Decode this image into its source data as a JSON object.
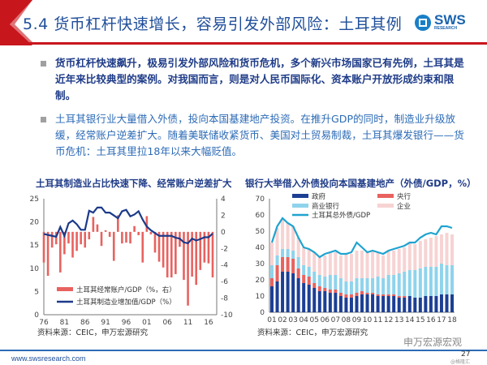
{
  "header": {
    "title": "5.4 货币杠杆快速增长，容易引发外部风险：土耳其例",
    "logo": "SWS",
    "logo_sub": "RESEARCH"
  },
  "bullets": [
    "货币杠杆快速飙升，极易引发外部风险和货币危机，多个新兴市场国家已有先例，土耳其是近年来比较典型的案例。对我国而言，则是对人民币国际化、资本账户开放形成约束和限制。",
    "土耳其银行业大量借入外债，投向本国基建地产投资。在推升GDP的同时，制造业升级放缓，经常账户逆差扩大。随着美联储收紧货币、美国对土贸易制裁，土耳其爆发银行——货币危机：土耳其里拉18年以来大幅贬值。"
  ],
  "footer": {
    "url": "www.swsresearch.com",
    "page": "27",
    "watermark": "申万宏源宏观",
    "watermark2": "@格隆汇"
  },
  "colors": {
    "title": "#1f4e9a",
    "accent_red": "#c8161d",
    "footer_line": "#2d6bb6"
  },
  "chart_data": [
    {
      "type": "bar+line",
      "title": "土耳其制造业占比快速下降、经常账户逆差扩大",
      "source": "资料来源：CEIC，申万宏源研究",
      "x": [
        1976,
        1977,
        1978,
        1979,
        1980,
        1981,
        1982,
        1983,
        1984,
        1985,
        1986,
        1987,
        1988,
        1989,
        1990,
        1991,
        1992,
        1993,
        1994,
        1995,
        1996,
        1997,
        1998,
        1999,
        2000,
        2001,
        2002,
        2003,
        2004,
        2005,
        2006,
        2007,
        2008,
        2009,
        2010,
        2011,
        2012,
        2013,
        2014,
        2015,
        2016,
        2017
      ],
      "xticks": [
        "76",
        "81",
        "86",
        "91",
        "96",
        "01",
        "06",
        "11",
        "16"
      ],
      "ylim_left": [
        0,
        25
      ],
      "yticks_left": [
        "0",
        "5",
        "10",
        "15",
        "20",
        "25"
      ],
      "ylim_right": [
        -10,
        4
      ],
      "yticks_right": [
        "-10",
        "-8",
        "-6",
        "-4",
        "-2",
        "0",
        "2",
        "4"
      ],
      "series": [
        {
          "name": "土耳其经常账户/GDP（%，右）",
          "type": "bar",
          "axis": "right",
          "color": "#e8625f",
          "values": [
            -3.7,
            -5.3,
            -1.9,
            -1.5,
            -4.9,
            -2.7,
            -1.4,
            -3.1,
            -2.3,
            -1.5,
            -1.9,
            -0.9,
            1.8,
            0.9,
            -1.7,
            0.2,
            -0.6,
            -3.5,
            2.0,
            -1.4,
            -1.3,
            -1.4,
            0.7,
            -0.4,
            -3.7,
            1.9,
            -0.3,
            -2.5,
            -3.6,
            -4.3,
            -5.5,
            -5.5,
            -5.1,
            -1.8,
            -5.8,
            -8.9,
            -5.4,
            -6.4,
            -4.6,
            -3.7,
            -3.8,
            -5.5
          ]
        },
        {
          "name": "土耳其制造业增加值/GDP（%）",
          "type": "line",
          "axis": "left",
          "color": "#1c3a8a",
          "values": [
            17.4,
            17.2,
            17.0,
            16.8,
            18.9,
            17.0,
            19.7,
            20.3,
            19.5,
            18.3,
            18.3,
            22.4,
            22.0,
            23.1,
            23.1,
            22.0,
            22.0,
            21.4,
            20.8,
            22.3,
            22.6,
            21.2,
            21.6,
            22.3,
            20.5,
            19.0,
            18.2,
            17.6,
            17.0,
            17.0,
            17.0,
            17.0,
            16.6,
            16.4,
            15.6,
            15.4,
            16.4,
            16.0,
            16.3,
            16.7,
            16.7,
            17.5
          ]
        }
      ]
    },
    {
      "type": "stacked-bar+line",
      "title": "银行大举借入外债投向本国基建地产（外债/GDP，%）",
      "source": "资料来源：CEIC，申万宏源研究",
      "x": [
        "01H1",
        "01H2",
        "02H1",
        "02H2",
        "03H1",
        "03H2",
        "04H1",
        "04H2",
        "05H1",
        "05H2",
        "06H1",
        "06H2",
        "07H1",
        "07H2",
        "08H1",
        "08H2",
        "09H1",
        "09H2",
        "10H1",
        "10H2",
        "11H1",
        "11H2",
        "12H1",
        "12H2",
        "13H1",
        "13H2",
        "14H1",
        "14H2",
        "15H1",
        "15H2",
        "16H1",
        "16H2",
        "17H1",
        "17H2",
        "18H1"
      ],
      "xticks": [
        "01",
        "02",
        "03",
        "04",
        "05",
        "06",
        "07",
        "08",
        "09",
        "10",
        "11",
        "12",
        "13",
        "14",
        "15",
        "16",
        "17",
        "18"
      ],
      "ylim": [
        0,
        70
      ],
      "yticks": [
        "0",
        "10",
        "20",
        "30",
        "40",
        "50",
        "60",
        "70"
      ],
      "series": [
        {
          "name": "政府",
          "type": "bar",
          "color": "#1c3f94",
          "values": [
            16,
            19,
            25,
            25,
            24,
            21,
            18,
            17,
            15,
            13,
            13,
            12,
            12,
            10,
            9,
            9,
            10,
            11,
            11,
            11,
            10,
            10,
            10,
            10,
            9,
            9,
            10,
            9,
            9,
            10,
            10,
            10,
            11,
            11,
            11
          ]
        },
        {
          "name": "央行",
          "type": "bar",
          "color": "#e8625f",
          "values": [
            5,
            10,
            9,
            9,
            9,
            6,
            5,
            5,
            3,
            3,
            2,
            2,
            2,
            2,
            2,
            2,
            2,
            2,
            1,
            1,
            1,
            1,
            1,
            1,
            1,
            1,
            0,
            0,
            0,
            0,
            0,
            0,
            0,
            0,
            0
          ]
        },
        {
          "name": "商业银行",
          "type": "bar",
          "color": "#8fd3ec",
          "values": [
            8,
            6,
            5,
            5,
            5,
            7,
            6,
            6,
            7,
            7,
            7,
            9,
            9,
            9,
            8,
            8,
            9,
            8,
            9,
            9,
            11,
            10,
            12,
            12,
            14,
            15,
            16,
            17,
            18,
            18,
            18,
            18,
            19,
            18,
            18
          ]
        },
        {
          "name": "企业",
          "type": "bar",
          "color": "#f7d3d3",
          "values": [
            14,
            17,
            18,
            16,
            15,
            12,
            11,
            11,
            12,
            11,
            13,
            14,
            14,
            14,
            17,
            17,
            17,
            17,
            16,
            17,
            15,
            14,
            15,
            15,
            15,
            15,
            17,
            16,
            17,
            17,
            18,
            19,
            18,
            20,
            19
          ]
        },
        {
          "name": "土耳其总外债/GDP",
          "type": "line",
          "color": "#1fa3cf",
          "values": [
            43,
            53,
            58,
            55,
            53,
            46,
            40,
            39,
            37,
            34,
            36,
            37,
            38,
            36,
            36,
            37,
            43,
            40,
            37,
            38,
            37,
            36,
            38,
            39,
            40,
            41,
            43,
            43,
            46,
            48,
            49,
            48,
            53,
            53,
            52
          ]
        }
      ]
    }
  ]
}
